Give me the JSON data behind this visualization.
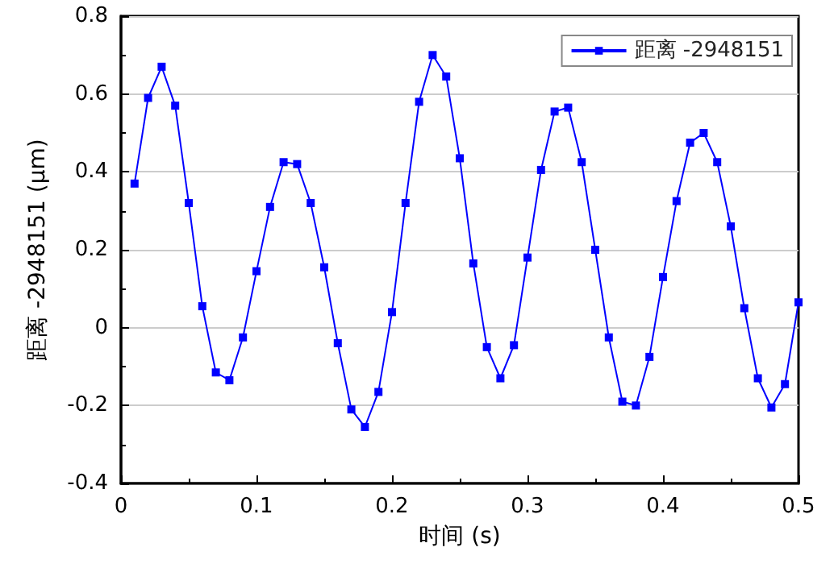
{
  "chart_data": {
    "type": "line",
    "xlabel": "时间 (s)",
    "ylabel": "距离 -2948151 (μm)",
    "x": [
      0.01,
      0.02,
      0.03,
      0.04,
      0.05,
      0.06,
      0.07,
      0.08,
      0.09,
      0.1,
      0.11,
      0.12,
      0.13,
      0.14,
      0.15,
      0.16,
      0.17,
      0.18,
      0.19,
      0.2,
      0.21,
      0.22,
      0.23,
      0.24,
      0.25,
      0.26,
      0.27,
      0.28,
      0.29,
      0.3,
      0.31,
      0.32,
      0.33,
      0.34,
      0.35,
      0.36,
      0.37,
      0.38,
      0.39,
      0.4,
      0.41,
      0.42,
      0.43,
      0.44,
      0.45,
      0.46,
      0.47,
      0.48,
      0.49,
      0.5
    ],
    "series": [
      {
        "name": "距离 -2948151",
        "color": "#0000ff",
        "values": [
          0.37,
          0.59,
          0.67,
          0.57,
          0.32,
          0.055,
          -0.115,
          -0.135,
          -0.025,
          0.145,
          0.31,
          0.425,
          0.42,
          0.32,
          0.155,
          -0.04,
          -0.21,
          -0.255,
          -0.165,
          0.04,
          0.32,
          0.58,
          0.7,
          0.645,
          0.435,
          0.165,
          -0.05,
          -0.13,
          -0.045,
          0.18,
          0.405,
          0.555,
          0.565,
          0.425,
          0.2,
          -0.025,
          -0.19,
          -0.2,
          -0.075,
          0.13,
          0.325,
          0.475,
          0.5,
          0.425,
          0.26,
          0.05,
          -0.13,
          -0.205,
          -0.145,
          0.065
        ]
      }
    ],
    "xlim": [
      0,
      0.5
    ],
    "xticks": [
      0,
      0.1,
      0.2,
      0.3,
      0.4,
      0.5
    ],
    "ylim": [
      -0.4,
      0.8
    ],
    "yticks": [
      -0.4,
      -0.2,
      0,
      0.2,
      0.4,
      0.6,
      0.8
    ],
    "grid": "y",
    "legend": "top right",
    "marker": "square",
    "line_style": "solid"
  }
}
